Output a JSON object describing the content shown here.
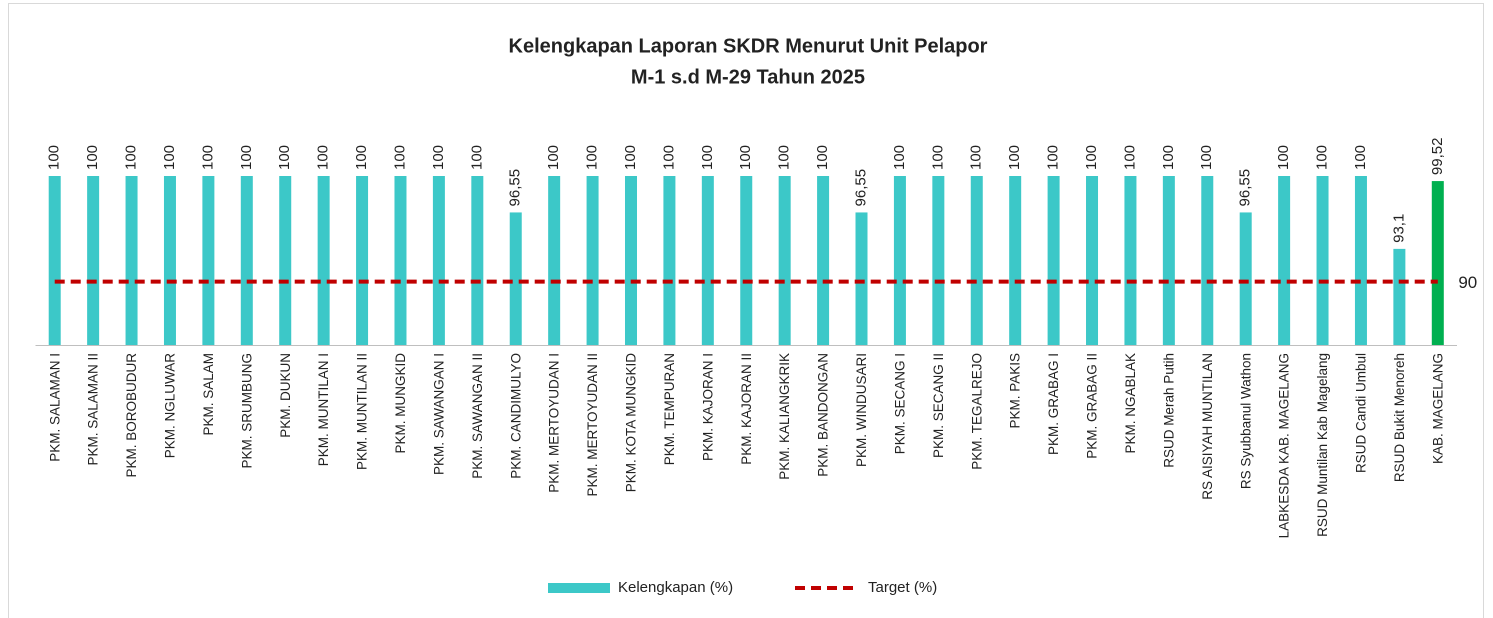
{
  "chart_data": {
    "type": "bar",
    "title": [
      "Kelengkapan Laporan SKDR Menurut Unit Pelapor",
      "M-1 s.d M-29 Tahun 2025"
    ],
    "categories": [
      "PKM. SALAMAN I",
      "PKM. SALAMAN II",
      "PKM. BOROBUDUR",
      "PKM. NGLUWAR",
      "PKM. SALAM",
      "PKM. SRUMBUNG",
      "PKM. DUKUN",
      "PKM. MUNTILAN I",
      "PKM. MUNTILAN II",
      "PKM. MUNGKID",
      "PKM. SAWANGAN I",
      "PKM. SAWANGAN II",
      "PKM. CANDIMULYO",
      "PKM. MERTOYUDAN I",
      "PKM. MERTOYUDAN II",
      "PKM. KOTA MUNGKID",
      "PKM. TEMPURAN",
      "PKM. KAJORAN I",
      "PKM. KAJORAN II",
      "PKM. KALIANGKRIK",
      "PKM. BANDONGAN",
      "PKM. WINDUSARI",
      "PKM. SECANG I",
      "PKM. SECANG II",
      "PKM. TEGALREJO",
      "PKM. PAKIS",
      "PKM. GRABAG I",
      "PKM. GRABAG II",
      "PKM. NGABLAK",
      "RSUD Merah Putih",
      "RS AISIYAH MUNTILAN",
      "RS Syubbanul Wathon",
      "LABKESDA KAB. MAGELANG",
      "RSUD Muntilan Kab Magelang",
      "RSUD Candi Umbul",
      "RSUD Bukit Menoreh",
      "KAB. MAGELANG"
    ],
    "series": [
      {
        "name": "Kelengkapan (%)",
        "type": "bar",
        "color": "#3cc8c8",
        "colors": [
          "#3cc8c8",
          "#3cc8c8",
          "#3cc8c8",
          "#3cc8c8",
          "#3cc8c8",
          "#3cc8c8",
          "#3cc8c8",
          "#3cc8c8",
          "#3cc8c8",
          "#3cc8c8",
          "#3cc8c8",
          "#3cc8c8",
          "#3cc8c8",
          "#3cc8c8",
          "#3cc8c8",
          "#3cc8c8",
          "#3cc8c8",
          "#3cc8c8",
          "#3cc8c8",
          "#3cc8c8",
          "#3cc8c8",
          "#3cc8c8",
          "#3cc8c8",
          "#3cc8c8",
          "#3cc8c8",
          "#3cc8c8",
          "#3cc8c8",
          "#3cc8c8",
          "#3cc8c8",
          "#3cc8c8",
          "#3cc8c8",
          "#3cc8c8",
          "#3cc8c8",
          "#3cc8c8",
          "#3cc8c8",
          "#3cc8c8",
          "#00b050"
        ],
        "values": [
          100,
          100,
          100,
          100,
          100,
          100,
          100,
          100,
          100,
          100,
          100,
          100,
          96.55,
          100,
          100,
          100,
          100,
          100,
          100,
          100,
          100,
          96.55,
          100,
          100,
          100,
          100,
          100,
          100,
          100,
          100,
          100,
          96.55,
          100,
          100,
          100,
          93.1,
          99.52
        ],
        "value_labels": [
          "100",
          "100",
          "100",
          "100",
          "100",
          "100",
          "100",
          "100",
          "100",
          "100",
          "100",
          "100",
          "96,55",
          "100",
          "100",
          "100",
          "100",
          "100",
          "100",
          "100",
          "100",
          "96,55",
          "100",
          "100",
          "100",
          "100",
          "100",
          "100",
          "100",
          "100",
          "100",
          "96,55",
          "100",
          "100",
          "100",
          "93,1",
          "99,52"
        ]
      },
      {
        "name": "Target (%)",
        "type": "line",
        "color": "#c00000",
        "dashed": true,
        "values": [
          90,
          90,
          90,
          90,
          90,
          90,
          90,
          90,
          90,
          90,
          90,
          90,
          90,
          90,
          90,
          90,
          90,
          90,
          90,
          90,
          90,
          90,
          90,
          90,
          90,
          90,
          90,
          90,
          90,
          90,
          90,
          90,
          90,
          90,
          90,
          90,
          90
        ]
      }
    ],
    "ylim": [
      84,
      100
    ]
  }
}
